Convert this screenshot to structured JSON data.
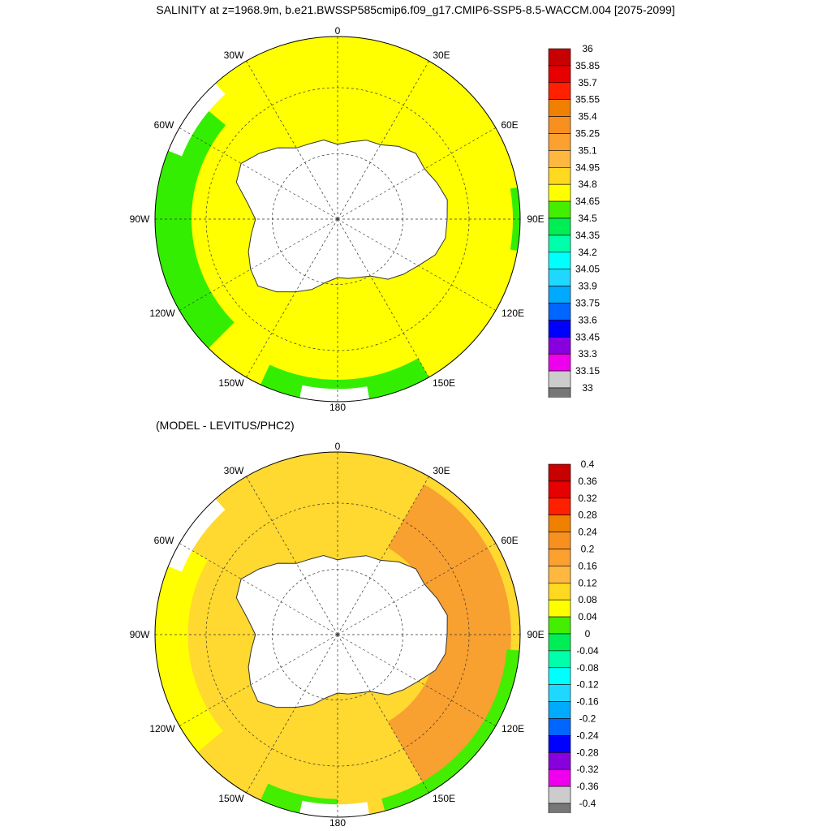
{
  "title": "SALINITY at z=1968.9m, b.e21.BWSSP585cmip6.f09_g17.CMIP6-SSP5-8.5-WACCM.004 [2075-2099]",
  "subtitle": "(MODEL - LEVITUS/PHC2)",
  "lon_labels": {
    "n": "0",
    "ne": "30E",
    "ene": "60E",
    "e": "90E",
    "ese": "120E",
    "se": "150E",
    "s": "180",
    "sw": "150W",
    "wsw": "120W",
    "w": "90W",
    "wnw": "60W",
    "nw": "30W"
  },
  "colors": {
    "land": "#ffffff",
    "coast": "#333333",
    "grid": "#333333"
  },
  "panels": [
    {
      "id": "salinity",
      "ocean_fill": "#ffff00",
      "secondary_fill": "#33ee00",
      "colorbar": {
        "labels": [
          "36",
          "35.85",
          "35.7",
          "35.55",
          "35.4",
          "35.25",
          "35.1",
          "34.95",
          "34.8",
          "34.65",
          "34.5",
          "34.35",
          "34.2",
          "34.05",
          "33.9",
          "33.75",
          "33.6",
          "33.45",
          "33.3",
          "33.15",
          "33"
        ],
        "colors": [
          "#c80000",
          "#e60000",
          "#ff2000",
          "#f08000",
          "#f89020",
          "#fca030",
          "#feb840",
          "#ffd820",
          "#ffff00",
          "#44ee00",
          "#00ee55",
          "#00ffaa",
          "#00ffff",
          "#20d8ff",
          "#00aaff",
          "#0066ff",
          "#0000ff",
          "#8800dd",
          "#ee00ee",
          "#cccccc"
        ],
        "bottom_color": "#777777"
      }
    },
    {
      "id": "difference",
      "ocean_fill": "#ffd830",
      "secondary_fill": "#f8a030",
      "colorbar": {
        "labels": [
          "0.4",
          "0.36",
          "0.32",
          "0.28",
          "0.24",
          "0.2",
          "0.16",
          "0.12",
          "0.08",
          "0.04",
          "0",
          "-0.04",
          "-0.08",
          "-0.12",
          "-0.16",
          "-0.2",
          "-0.24",
          "-0.28",
          "-0.32",
          "-0.36",
          "-0.4"
        ],
        "colors": [
          "#c80000",
          "#e60000",
          "#ff2000",
          "#f08000",
          "#f89020",
          "#fca030",
          "#feb840",
          "#ffd820",
          "#ffff00",
          "#44ee00",
          "#00ee55",
          "#00ffaa",
          "#00ffff",
          "#20d8ff",
          "#00aaff",
          "#0066ff",
          "#0000ff",
          "#8800dd",
          "#ee00ee",
          "#cccccc"
        ],
        "bottom_color": "#777777"
      }
    }
  ]
}
